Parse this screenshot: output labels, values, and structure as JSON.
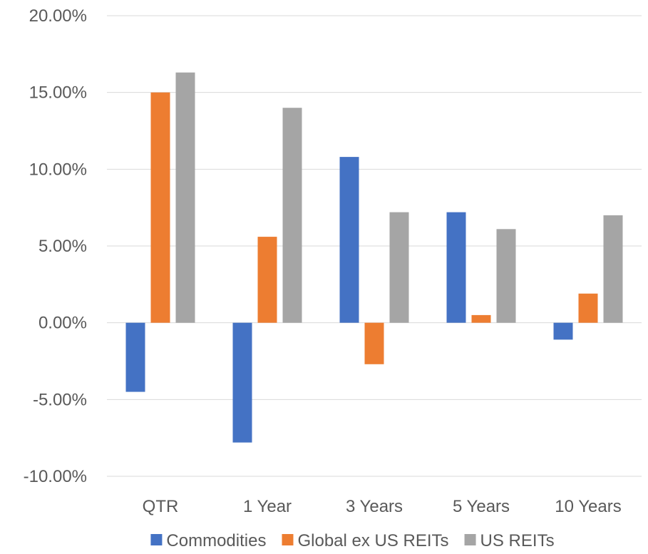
{
  "chart_data": {
    "type": "bar",
    "title": "",
    "xlabel": "",
    "ylabel": "",
    "categories": [
      "QTR",
      "1 Year",
      "3 Years",
      "5 Years",
      "10 Years"
    ],
    "series": [
      {
        "name": "Commodities",
        "color": "#4472C4",
        "values": [
          -4.5,
          -7.8,
          10.8,
          7.2,
          -1.1
        ]
      },
      {
        "name": "Global ex US REITs",
        "color": "#ED7D31",
        "values": [
          15.0,
          5.6,
          -2.7,
          0.5,
          1.9
        ]
      },
      {
        "name": "US REITs",
        "color": "#A5A5A5",
        "values": [
          16.3,
          14.0,
          7.2,
          6.1,
          7.0
        ]
      }
    ],
    "ylim": [
      -10,
      20
    ],
    "yticks": [
      -10,
      -5,
      0,
      5,
      10,
      15,
      20
    ],
    "ytick_labels": [
      "-10.00%",
      "-5.00%",
      "0.00%",
      "5.00%",
      "10.00%",
      "15.00%",
      "20.00%"
    ],
    "grid": true,
    "legend_position": "bottom"
  }
}
